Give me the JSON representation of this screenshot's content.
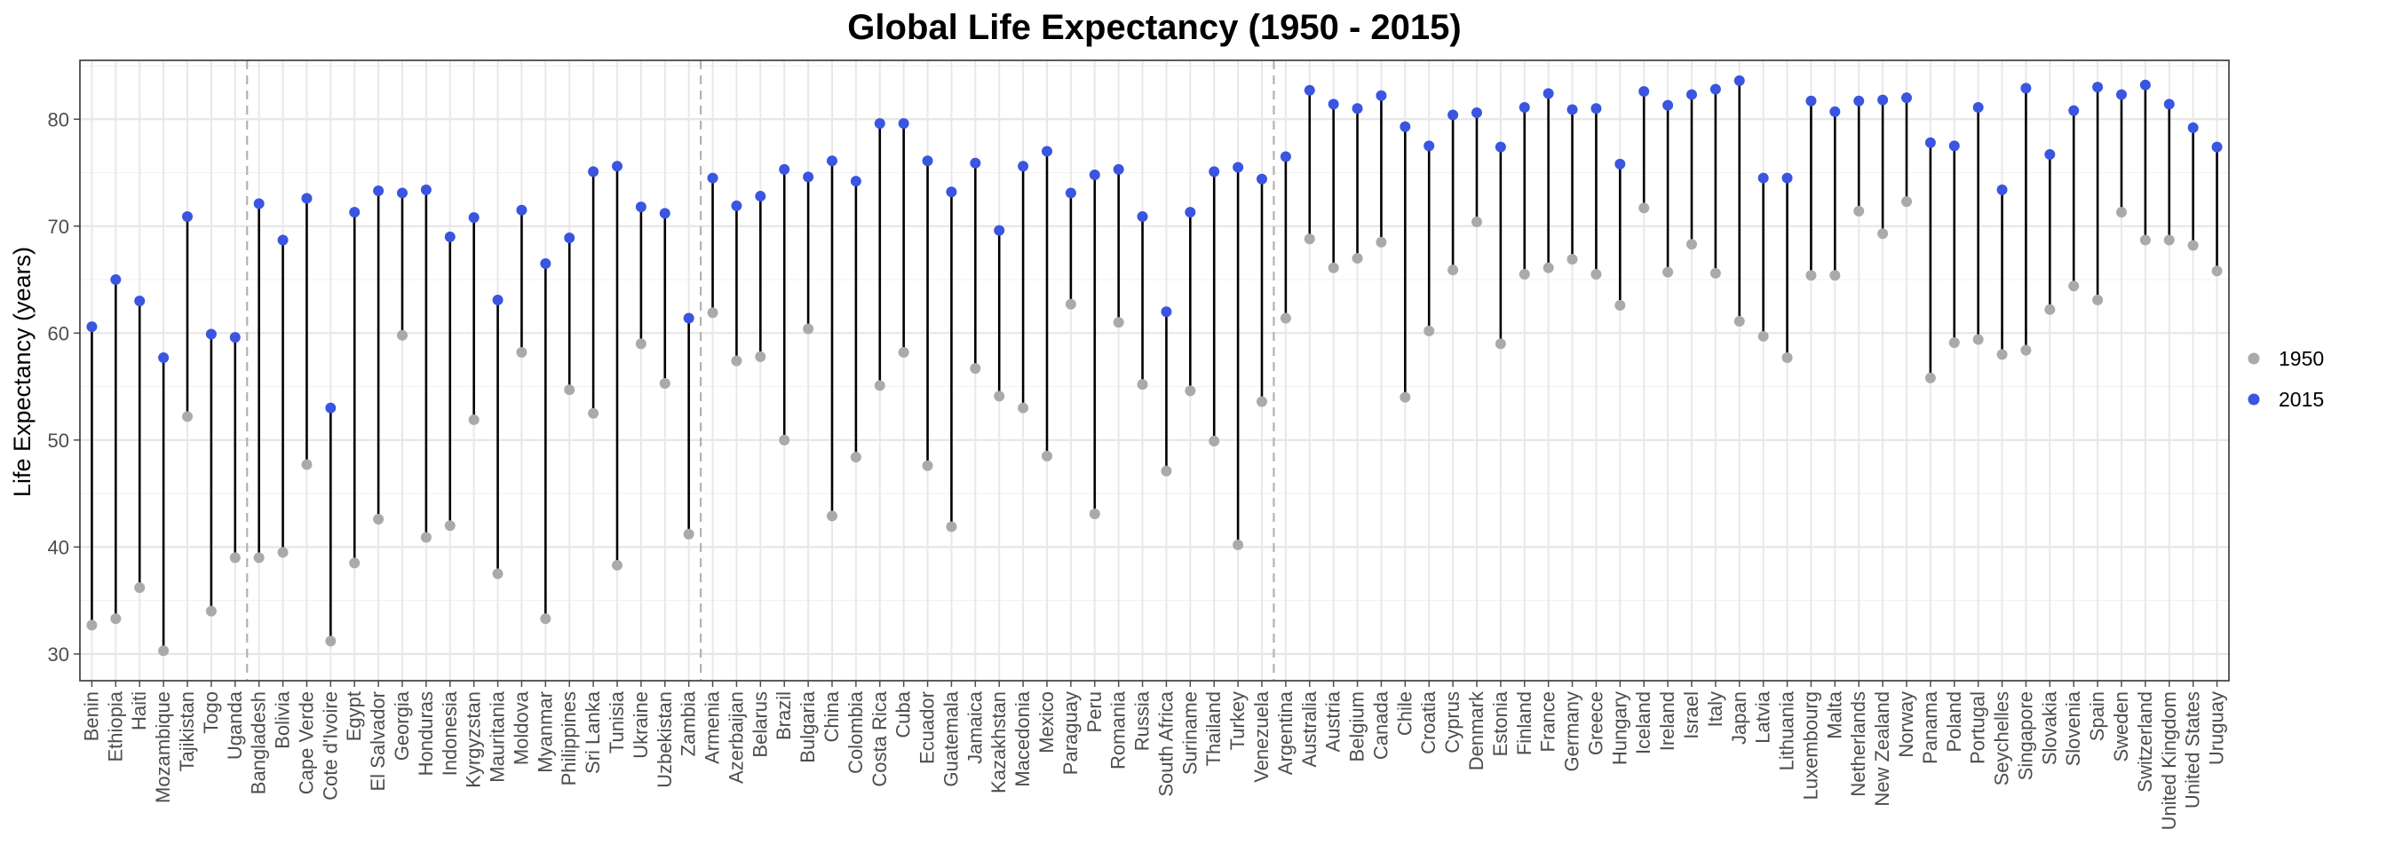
{
  "chart_data": {
    "type": "dumbbell",
    "title": "Global Life Expectancy (1950 - 2015)",
    "xlabel": "",
    "ylabel": "Life Expectancy (years)",
    "ylim": [
      27.5,
      85.5
    ],
    "yticks": [
      30,
      40,
      50,
      60,
      70,
      80
    ],
    "grid": true,
    "legend_position": "right",
    "colors": {
      "1950": "#aaaaaa",
      "2015": "#3a55e0",
      "segment": "#000000",
      "separator": "#b3b3b3"
    },
    "series": [
      {
        "name": "1950",
        "values": [
          32.7,
          33.3,
          36.2,
          30.3,
          52.2,
          34.0,
          39.0,
          39.0,
          39.5,
          47.7,
          31.2,
          38.5,
          42.6,
          59.8,
          40.9,
          42.0,
          51.9,
          37.5,
          58.2,
          33.3,
          54.7,
          52.5,
          38.3,
          59.0,
          55.3,
          41.2,
          61.9,
          57.4,
          57.8,
          50.0,
          60.4,
          42.9,
          48.4,
          55.1,
          58.2,
          47.6,
          41.9,
          56.7,
          54.1,
          53.0,
          48.5,
          62.7,
          43.1,
          61.0,
          55.2,
          47.1,
          54.6,
          49.9,
          40.2,
          53.6,
          61.4,
          68.8,
          66.1,
          67.0,
          68.5,
          54.0,
          60.2,
          65.9,
          70.4,
          59.0,
          65.5,
          66.1,
          66.9,
          65.5,
          62.6,
          71.7,
          65.7,
          68.3,
          65.6,
          61.1,
          59.7,
          57.7,
          65.4,
          65.4,
          71.4,
          69.3,
          72.3,
          55.8,
          59.1,
          59.4,
          58.0,
          58.4,
          62.2,
          64.4,
          63.1,
          71.3,
          68.7,
          68.7,
          68.2,
          65.8
        ]
      },
      {
        "name": "2015",
        "values": [
          60.6,
          65.0,
          63.0,
          57.7,
          70.9,
          59.9,
          59.6,
          72.1,
          68.7,
          72.6,
          53.0,
          71.3,
          73.3,
          73.1,
          73.4,
          69.0,
          70.8,
          63.1,
          71.5,
          66.5,
          68.9,
          75.1,
          75.6,
          71.8,
          71.2,
          61.4,
          74.5,
          71.9,
          72.8,
          75.3,
          74.6,
          76.1,
          74.2,
          79.6,
          79.6,
          76.1,
          73.2,
          75.9,
          69.6,
          75.6,
          77.0,
          73.1,
          74.8,
          75.3,
          70.9,
          62.0,
          71.3,
          75.1,
          75.5,
          74.4,
          76.5,
          82.7,
          81.4,
          81.0,
          82.2,
          79.3,
          77.5,
          80.4,
          80.6,
          77.4,
          81.1,
          82.4,
          80.9,
          81.0,
          75.8,
          82.6,
          81.3,
          82.3,
          82.8,
          83.6,
          74.5,
          74.5,
          81.7,
          80.7,
          81.7,
          81.8,
          82.0,
          77.8,
          77.5,
          81.1,
          73.4,
          82.9,
          76.7,
          80.8,
          83.0,
          82.3,
          83.2,
          81.4,
          79.2,
          77.4
        ]
      }
    ],
    "categories": [
      "Benin",
      "Ethiopia",
      "Haiti",
      "Mozambique",
      "Tajikistan",
      "Togo",
      "Uganda",
      "Bangladesh",
      "Bolivia",
      "Cape Verde",
      "Cote d'Ivoire",
      "Egypt",
      "El Salvador",
      "Georgia",
      "Honduras",
      "Indonesia",
      "Kyrgyzstan",
      "Mauritania",
      "Moldova",
      "Myanmar",
      "Philippines",
      "Sri Lanka",
      "Tunisia",
      "Ukraine",
      "Uzbekistan",
      "Zambia",
      "Armenia",
      "Azerbaijan",
      "Belarus",
      "Brazil",
      "Bulgaria",
      "China",
      "Colombia",
      "Costa Rica",
      "Cuba",
      "Ecuador",
      "Guatemala",
      "Jamaica",
      "Kazakhstan",
      "Macedonia",
      "Mexico",
      "Paraguay",
      "Peru",
      "Romania",
      "Russia",
      "South Africa",
      "Suriname",
      "Thailand",
      "Turkey",
      "Venezuela",
      "Argentina",
      "Australia",
      "Austria",
      "Belgium",
      "Canada",
      "Chile",
      "Croatia",
      "Cyprus",
      "Denmark",
      "Estonia",
      "Finland",
      "France",
      "Germany",
      "Greece",
      "Hungary",
      "Iceland",
      "Ireland",
      "Israel",
      "Italy",
      "Japan",
      "Latvia",
      "Lithuania",
      "Luxembourg",
      "Malta",
      "Netherlands",
      "New Zealand",
      "Norway",
      "Panama",
      "Poland",
      "Portugal",
      "Seychelles",
      "Singapore",
      "Slovakia",
      "Slovenia",
      "Spain",
      "Sweden",
      "Switzerland",
      "United Kingdom",
      "United States",
      "Uruguay"
    ],
    "group_separators_after": [
      "Uganda",
      "Zambia",
      "Venezuela"
    ],
    "legend": [
      {
        "label": "1950"
      },
      {
        "label": "2015"
      }
    ]
  }
}
